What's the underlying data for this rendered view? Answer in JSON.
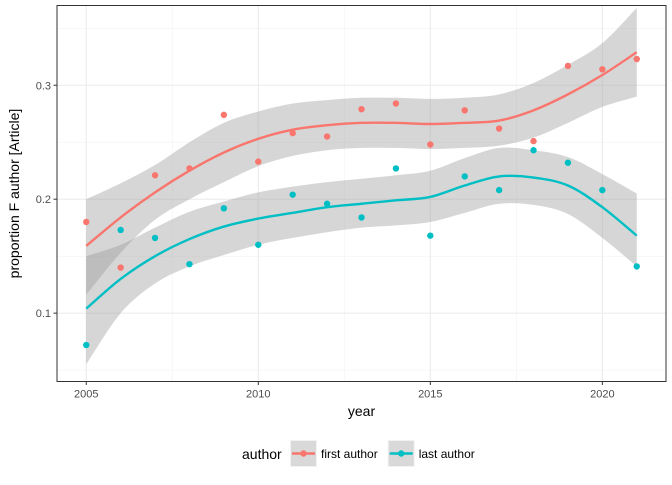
{
  "chart_data": {
    "type": "scatter",
    "title": "",
    "xlabel": "year",
    "ylabel": "proportion F author [Article]",
    "xlim": [
      2004.15,
      2021.85
    ],
    "ylim": [
      0.04,
      0.37
    ],
    "x_ticks": [
      2005,
      2010,
      2015,
      2020
    ],
    "y_ticks": [
      0.1,
      0.2,
      0.3
    ],
    "x_tick_labels": [
      "2005",
      "2010",
      "2015",
      "2020"
    ],
    "y_tick_labels": [
      "0.1",
      "0.2",
      "0.3"
    ],
    "grid": true,
    "legend": {
      "title": "author",
      "position": "bottom"
    },
    "series": [
      {
        "name": "first author",
        "color": "#F8766D",
        "x": [
          2005,
          2006,
          2007,
          2008,
          2009,
          2010,
          2011,
          2012,
          2013,
          2014,
          2015,
          2016,
          2017,
          2018,
          2019,
          2020,
          2021
        ],
        "y": [
          0.18,
          0.14,
          0.221,
          0.227,
          0.274,
          0.233,
          0.258,
          0.255,
          0.279,
          0.284,
          0.248,
          0.278,
          0.262,
          0.251,
          0.317,
          0.314,
          0.323
        ],
        "smooth": {
          "x": [
            2005,
            2006,
            2007,
            2008,
            2009,
            2010,
            2011,
            2012,
            2013,
            2014,
            2015,
            2016,
            2017,
            2018,
            2019,
            2020,
            2021
          ],
          "fit": [
            0.159,
            0.184,
            0.206,
            0.225,
            0.241,
            0.253,
            0.261,
            0.265,
            0.267,
            0.267,
            0.266,
            0.267,
            0.269,
            0.278,
            0.292,
            0.309,
            0.329
          ],
          "lower": [
            0.116,
            0.153,
            0.182,
            0.2,
            0.215,
            0.229,
            0.238,
            0.243,
            0.245,
            0.245,
            0.244,
            0.245,
            0.247,
            0.254,
            0.267,
            0.281,
            0.29
          ],
          "upper": [
            0.2,
            0.214,
            0.23,
            0.25,
            0.267,
            0.277,
            0.284,
            0.287,
            0.289,
            0.289,
            0.288,
            0.289,
            0.292,
            0.302,
            0.318,
            0.337,
            0.368
          ]
        }
      },
      {
        "name": "last author",
        "color": "#00BFC4",
        "x": [
          2005,
          2006,
          2007,
          2008,
          2009,
          2010,
          2011,
          2012,
          2013,
          2014,
          2015,
          2016,
          2017,
          2018,
          2019,
          2020,
          2021
        ],
        "y": [
          0.072,
          0.173,
          0.166,
          0.143,
          0.192,
          0.16,
          0.204,
          0.196,
          0.184,
          0.227,
          0.168,
          0.22,
          0.208,
          0.243,
          0.232,
          0.208,
          0.141
        ],
        "smooth": {
          "x": [
            2005,
            2006,
            2007,
            2008,
            2009,
            2010,
            2011,
            2012,
            2013,
            2014,
            2015,
            2016,
            2017,
            2018,
            2019,
            2020,
            2021
          ],
          "fit": [
            0.104,
            0.13,
            0.15,
            0.165,
            0.176,
            0.183,
            0.188,
            0.193,
            0.196,
            0.199,
            0.202,
            0.212,
            0.22,
            0.219,
            0.212,
            0.193,
            0.168
          ],
          "lower": [
            0.055,
            0.1,
            0.126,
            0.141,
            0.151,
            0.16,
            0.166,
            0.171,
            0.175,
            0.177,
            0.18,
            0.188,
            0.196,
            0.195,
            0.187,
            0.166,
            0.141
          ],
          "upper": [
            0.15,
            0.16,
            0.175,
            0.189,
            0.198,
            0.206,
            0.211,
            0.215,
            0.218,
            0.221,
            0.225,
            0.236,
            0.245,
            0.243,
            0.237,
            0.222,
            0.205
          ]
        }
      }
    ]
  }
}
